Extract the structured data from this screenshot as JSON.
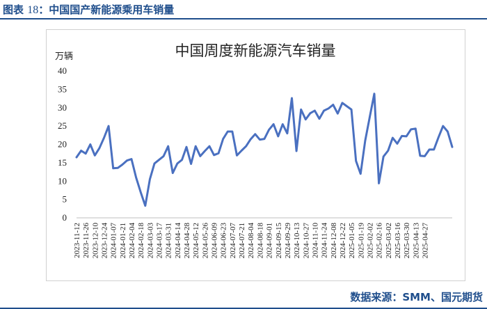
{
  "caption": {
    "prefix": "图表 ",
    "number": "18",
    "text": "：中国国产新能源乘用车销量"
  },
  "source": "数据来源：SMM、国元期货",
  "colors": {
    "accent": "#1f4e8c",
    "line": "#4a70c0"
  },
  "chart_data": {
    "type": "line",
    "title": "中国周度新能源汽车销量",
    "ylabel": "万辆",
    "xlabel": "",
    "ylim": [
      0,
      40
    ],
    "yticks": [
      0,
      5,
      10,
      15,
      20,
      25,
      30,
      35,
      40
    ],
    "grid": false,
    "xtick_labels": [
      "2023-11-12",
      "2023-11-26",
      "2023-12-10",
      "2023-12-24",
      "2024-01-07",
      "2024-01-21",
      "2024-02-04",
      "2024-02-18",
      "2024-03-03",
      "2024-03-17",
      "2024-03-31",
      "2024-04-14",
      "2024-04-28",
      "2024-05-12",
      "2024-05-26",
      "2024-06-09",
      "2024-06-23",
      "2024-07-07",
      "2024-07-21",
      "2024-08-04",
      "2024-08-18",
      "2024-09-01",
      "2024-09-15",
      "2024-09-29",
      "2024-10-13",
      "2024-10-27",
      "2024-11-10",
      "2024-11-24",
      "2024-12-08",
      "2024-12-22",
      "2025-01-05",
      "2025-01-19",
      "2025-02-02",
      "2025-02-16",
      "2025-03-02",
      "2025-03-16",
      "2025-03-30",
      "2025-04-13",
      "2025-04-27"
    ],
    "series": [
      {
        "name": "",
        "values": [
          16.5,
          18.3,
          17.5,
          20.0,
          17.0,
          19.0,
          21.8,
          25.0,
          13.5,
          13.6,
          14.5,
          15.6,
          16.0,
          11.0,
          7.0,
          3.3,
          10.5,
          14.8,
          15.8,
          16.8,
          19.5,
          12.2,
          14.8,
          15.8,
          19.3,
          14.7,
          19.5,
          16.8,
          18.2,
          19.5,
          17.1,
          17.6,
          21.5,
          23.5,
          23.5,
          17.0,
          18.3,
          19.5,
          21.4,
          22.8,
          21.3,
          21.5,
          24.0,
          25.5,
          22.2,
          25.5,
          23.0,
          32.6,
          18.2,
          29.5,
          26.8,
          28.5,
          29.2,
          27.0,
          29.2,
          29.8,
          30.8,
          28.4,
          31.3,
          30.4,
          29.5,
          15.5,
          12.0,
          21.0,
          27.5,
          33.8,
          9.4,
          16.7,
          18.3,
          21.8,
          20.2,
          22.3,
          22.2,
          24.1,
          24.3,
          16.9,
          16.8,
          18.6,
          18.6,
          21.9,
          25.0,
          23.5,
          19.3
        ]
      }
    ]
  }
}
